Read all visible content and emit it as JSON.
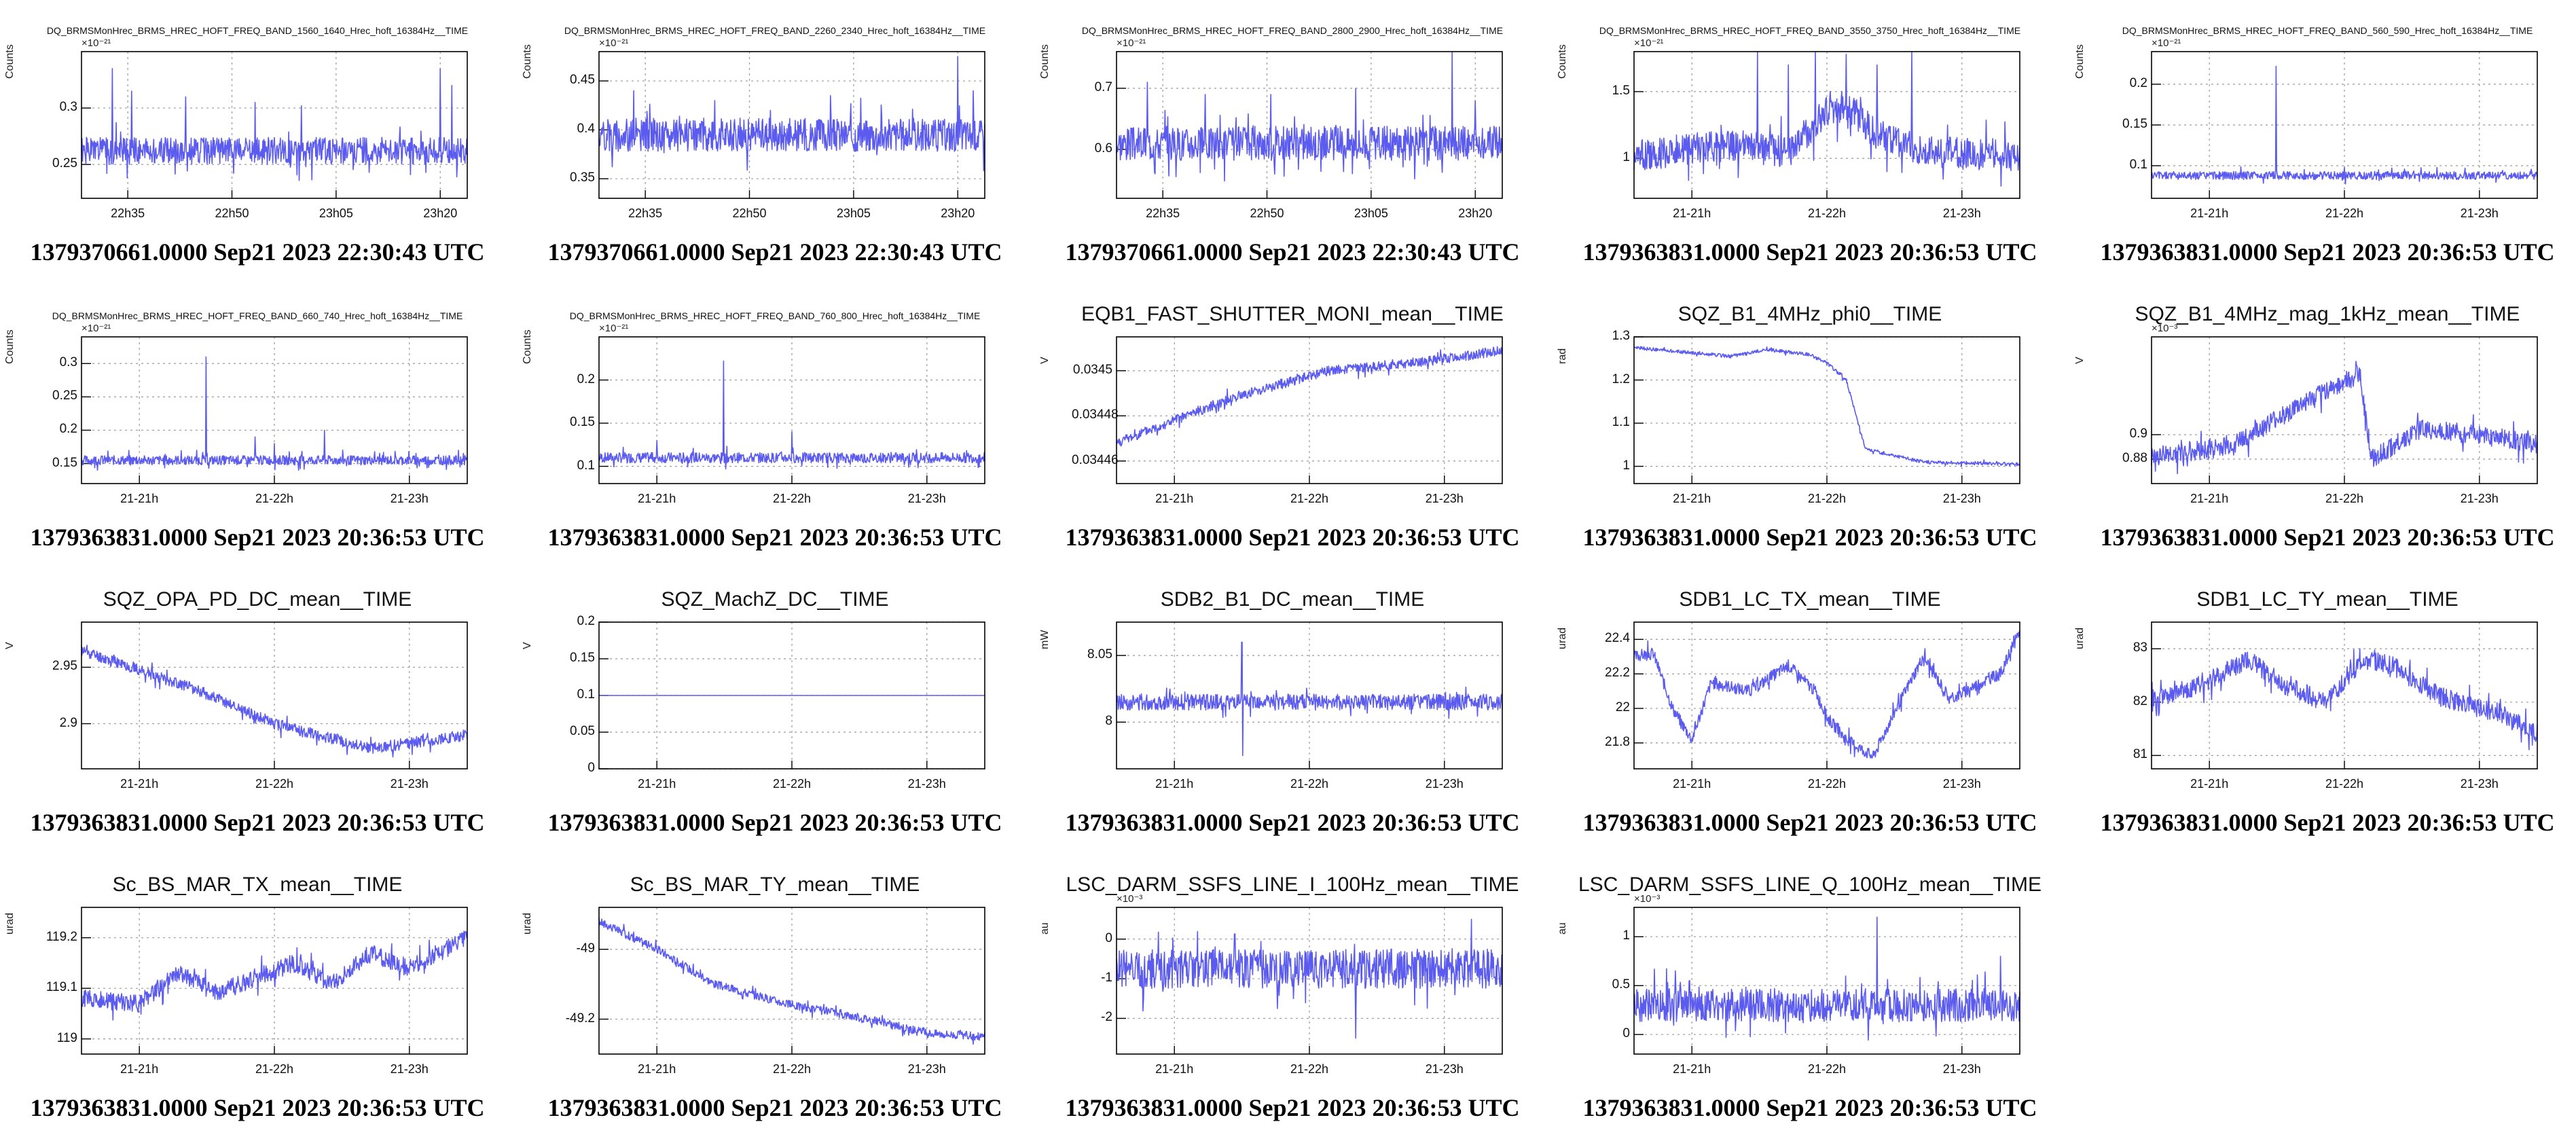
{
  "page": {
    "series_color": "#5b5bf0",
    "background": "#ffffff"
  },
  "chart_data": [
    {
      "type": "line",
      "title": "DQ_BRMSMonHrec_BRMS_HREC_HOFT_FREQ_BAND_1560_1640_Hrec_hoft_16384Hz__TIME",
      "title_size": "small",
      "ylabel": "Counts",
      "exponent": "×10⁻²¹",
      "ylim": [
        0.22,
        0.35
      ],
      "yticks": [
        0.25,
        0.3
      ],
      "ytick_labels": [
        "0.25",
        "0.3"
      ],
      "xticks": [
        "22h35",
        "22h50",
        "23h05",
        "23h20"
      ],
      "caption": "1379370661.0000 Sep21 2023 22:30:43 UTC",
      "profile": [
        [
          0,
          0.262
        ],
        [
          1,
          0.262
        ]
      ],
      "noise": 0.012,
      "spikes": [
        [
          0.08,
          0.335
        ],
        [
          0.13,
          0.315
        ],
        [
          0.27,
          0.31
        ],
        [
          0.45,
          0.305
        ],
        [
          0.57,
          0.302
        ],
        [
          0.93,
          0.335
        ],
        [
          0.96,
          0.32
        ]
      ]
    },
    {
      "type": "line",
      "title": "DQ_BRMSMonHrec_BRMS_HREC_HOFT_FREQ_BAND_2260_2340_Hrec_hoft_16384Hz__TIME",
      "title_size": "small",
      "ylabel": "Counts",
      "exponent": "×10⁻²¹",
      "ylim": [
        0.33,
        0.48
      ],
      "yticks": [
        0.35,
        0.4,
        0.45
      ],
      "ytick_labels": [
        "0.35",
        "0.4",
        "0.45"
      ],
      "xticks": [
        "22h35",
        "22h50",
        "23h05",
        "23h20"
      ],
      "caption": "1379370661.0000 Sep21 2023 22:30:43 UTC",
      "profile": [
        [
          0,
          0.395
        ],
        [
          1,
          0.395
        ]
      ],
      "noise": 0.017,
      "spikes": [
        [
          0.09,
          0.44
        ],
        [
          0.3,
          0.43
        ],
        [
          0.6,
          0.435
        ],
        [
          0.93,
          0.475
        ],
        [
          0.97,
          0.44
        ]
      ]
    },
    {
      "type": "line",
      "title": "DQ_BRMSMonHrec_BRMS_HREC_HOFT_FREQ_BAND_2800_2900_Hrec_hoft_16384Hz__TIME",
      "title_size": "small",
      "ylabel": "Counts",
      "exponent": "×10⁻²¹",
      "ylim": [
        0.52,
        0.76
      ],
      "yticks": [
        0.6,
        0.7
      ],
      "ytick_labels": [
        "0.6",
        "0.7"
      ],
      "xticks": [
        "22h35",
        "22h50",
        "23h05",
        "23h20"
      ],
      "caption": "1379370661.0000 Sep21 2023 22:30:43 UTC",
      "profile": [
        [
          0,
          0.61
        ],
        [
          1,
          0.61
        ]
      ],
      "noise": 0.028,
      "spikes": [
        [
          0.08,
          0.71
        ],
        [
          0.23,
          0.69
        ],
        [
          0.4,
          0.69
        ],
        [
          0.62,
          0.7
        ],
        [
          0.87,
          0.76
        ],
        [
          0.93,
          0.68
        ]
      ]
    },
    {
      "type": "line",
      "title": "DQ_BRMSMonHrec_BRMS_HREC_HOFT_FREQ_BAND_3550_3750_Hrec_hoft_16384Hz__TIME",
      "title_size": "small",
      "ylabel": "Counts",
      "exponent": "×10⁻²¹",
      "ylim": [
        0.7,
        1.8
      ],
      "yticks": [
        1,
        1.5
      ],
      "ytick_labels": [
        "1",
        "1.5"
      ],
      "xticks": [
        "21-21h",
        "21-22h",
        "21-23h"
      ],
      "caption": "1379363831.0000 Sep21 2023 20:36:53 UTC",
      "profile": [
        [
          0,
          1.02
        ],
        [
          0.25,
          1.1
        ],
        [
          0.4,
          1.05
        ],
        [
          0.5,
          1.35
        ],
        [
          0.55,
          1.4
        ],
        [
          0.62,
          1.2
        ],
        [
          0.75,
          1.05
        ],
        [
          1,
          1.02
        ]
      ],
      "noise": 0.12,
      "spikes": [
        [
          0.32,
          1.8
        ],
        [
          0.4,
          1.7
        ],
        [
          0.47,
          1.8
        ],
        [
          0.55,
          1.78
        ],
        [
          0.63,
          1.7
        ],
        [
          0.72,
          1.8
        ]
      ]
    },
    {
      "type": "line",
      "title": "DQ_BRMSMonHrec_BRMS_HREC_HOFT_FREQ_BAND_560_590_Hrec_hoft_16384Hz__TIME",
      "title_size": "small",
      "ylabel": "Counts",
      "exponent": "×10⁻²¹",
      "ylim": [
        0.06,
        0.24
      ],
      "yticks": [
        0.1,
        0.15,
        0.2
      ],
      "ytick_labels": [
        "0.1",
        "0.15",
        "0.2"
      ],
      "xticks": [
        "21-21h",
        "21-22h",
        "21-23h"
      ],
      "caption": "1379363831.0000 Sep21 2023 20:36:53 UTC",
      "profile": [
        [
          0,
          0.088
        ],
        [
          1,
          0.088
        ]
      ],
      "noise": 0.005,
      "spikes": [
        [
          0.323,
          0.222
        ],
        [
          0.5,
          0.098
        ]
      ]
    },
    {
      "type": "line",
      "title": "DQ_BRMSMonHrec_BRMS_HREC_HOFT_FREQ_BAND_660_740_Hrec_hoft_16384Hz__TIME",
      "title_size": "small",
      "ylabel": "Counts",
      "exponent": "×10⁻²¹",
      "ylim": [
        0.12,
        0.34
      ],
      "yticks": [
        0.15,
        0.2,
        0.25,
        0.3
      ],
      "ytick_labels": [
        "0.15",
        "0.2",
        "0.25",
        "0.3"
      ],
      "xticks": [
        "21-21h",
        "21-22h",
        "21-23h"
      ],
      "caption": "1379363831.0000 Sep21 2023 20:36:53 UTC",
      "profile": [
        [
          0,
          0.155
        ],
        [
          1,
          0.155
        ]
      ],
      "noise": 0.007,
      "spikes": [
        [
          0.323,
          0.31
        ],
        [
          0.45,
          0.19
        ],
        [
          0.63,
          0.2
        ],
        [
          0.5,
          0.18
        ]
      ]
    },
    {
      "type": "line",
      "title": "DQ_BRMSMonHrec_BRMS_HREC_HOFT_FREQ_BAND_760_800_Hrec_hoft_16384Hz__TIME",
      "title_size": "small",
      "ylabel": "Counts",
      "exponent": "×10⁻²¹",
      "ylim": [
        0.08,
        0.25
      ],
      "yticks": [
        0.1,
        0.15,
        0.2
      ],
      "ytick_labels": [
        "0.1",
        "0.15",
        "0.2"
      ],
      "xticks": [
        "21-21h",
        "21-22h",
        "21-23h"
      ],
      "caption": "1379363831.0000 Sep21 2023 20:36:53 UTC",
      "profile": [
        [
          0,
          0.11
        ],
        [
          1,
          0.11
        ]
      ],
      "noise": 0.006,
      "spikes": [
        [
          0.323,
          0.222
        ],
        [
          0.5,
          0.14
        ],
        [
          0.15,
          0.13
        ]
      ]
    },
    {
      "type": "line",
      "title": "EQB1_FAST_SHUTTER_MONI_mean__TIME",
      "title_size": "big",
      "ylabel": "V",
      "exponent": "",
      "ylim": [
        0.03445,
        0.034515
      ],
      "yticks": [
        0.03446,
        0.03448,
        0.0345
      ],
      "ytick_labels": [
        "0.03446",
        "0.03448",
        "0.0345"
      ],
      "xticks": [
        "21-21h",
        "21-22h",
        "21-23h"
      ],
      "caption": "1379363831.0000 Sep21 2023 20:36:53 UTC",
      "profile": [
        [
          0,
          0.034468
        ],
        [
          0.3,
          0.034488
        ],
        [
          0.55,
          0.0345
        ],
        [
          0.8,
          0.034504
        ],
        [
          1,
          0.034509
        ]
      ],
      "noise": 2.2e-06,
      "spikes": []
    },
    {
      "type": "line",
      "title": "SQZ_B1_4MHz_phi0__TIME",
      "title_size": "big",
      "ylabel": "rad",
      "exponent": "",
      "ylim": [
        0.96,
        1.3
      ],
      "yticks": [
        1,
        1.1,
        1.2,
        1.3
      ],
      "ytick_labels": [
        "1",
        "1.1",
        "1.2",
        "1.3"
      ],
      "xticks": [
        "21-21h",
        "21-22h",
        "21-23h"
      ],
      "caption": "1379363831.0000 Sep21 2023 20:36:53 UTC",
      "profile": [
        [
          0,
          1.275
        ],
        [
          0.25,
          1.255
        ],
        [
          0.35,
          1.27
        ],
        [
          0.45,
          1.26
        ],
        [
          0.5,
          1.24
        ],
        [
          0.55,
          1.2
        ],
        [
          0.6,
          1.04
        ],
        [
          0.75,
          1.01
        ],
        [
          1,
          1.005
        ]
      ],
      "noise": 0.004,
      "spikes": []
    },
    {
      "type": "line",
      "title": "SQZ_B1_4MHz_mag_1kHz_mean__TIME",
      "title_size": "big",
      "ylabel": "V",
      "exponent": "×10⁻³",
      "ylim": [
        0.86,
        0.98
      ],
      "yticks": [
        0.88,
        0.9
      ],
      "ytick_labels": [
        "0.88",
        "0.9"
      ],
      "xticks": [
        "21-21h",
        "21-22h",
        "21-23h"
      ],
      "caption": "1379363831.0000 Sep21 2023 20:36:53 UTC",
      "profile": [
        [
          0,
          0.882
        ],
        [
          0.2,
          0.89
        ],
        [
          0.45,
          0.935
        ],
        [
          0.54,
          0.95
        ],
        [
          0.57,
          0.88
        ],
        [
          0.7,
          0.905
        ],
        [
          0.85,
          0.9
        ],
        [
          1,
          0.892
        ]
      ],
      "noise": 0.008,
      "spikes": [
        [
          0.53,
          0.96
        ]
      ]
    },
    {
      "type": "line",
      "title": "SQZ_OPA_PD_DC_mean__TIME",
      "title_size": "big",
      "ylabel": "V",
      "exponent": "",
      "ylim": [
        2.86,
        2.99
      ],
      "yticks": [
        2.9,
        2.95
      ],
      "ytick_labels": [
        "2.9",
        "2.95"
      ],
      "xticks": [
        "21-21h",
        "21-22h",
        "21-23h"
      ],
      "caption": "1379363831.0000 Sep21 2023 20:36:53 UTC",
      "profile": [
        [
          0,
          2.965
        ],
        [
          0.3,
          2.93
        ],
        [
          0.5,
          2.9
        ],
        [
          0.75,
          2.878
        ],
        [
          1,
          2.89
        ]
      ],
      "noise": 0.005,
      "spikes": []
    },
    {
      "type": "line",
      "title": "SQZ_MachZ_DC__TIME",
      "title_size": "big",
      "ylabel": "V",
      "exponent": "",
      "ylim": [
        0,
        0.2
      ],
      "yticks": [
        0,
        0.05,
        0.1,
        0.15,
        0.2
      ],
      "ytick_labels": [
        "0",
        "0.05",
        "0.1",
        "0.15",
        "0.2"
      ],
      "xticks": [
        "21-21h",
        "21-22h",
        "21-23h"
      ],
      "caption": "1379363831.0000 Sep21 2023 20:36:53 UTC",
      "profile": [
        [
          0,
          0.1
        ],
        [
          1,
          0.1
        ]
      ],
      "noise": 0,
      "spikes": []
    },
    {
      "type": "line",
      "title": "SDB2_B1_DC_mean__TIME",
      "title_size": "big",
      "ylabel": "mW",
      "exponent": "",
      "ylim": [
        7.965,
        8.075
      ],
      "yticks": [
        8,
        8.05
      ],
      "ytick_labels": [
        "8",
        "8.05"
      ],
      "xticks": [
        "21-21h",
        "21-22h",
        "21-23h"
      ],
      "caption": "1379363831.0000 Sep21 2023 20:36:53 UTC",
      "profile": [
        [
          0,
          8.015
        ],
        [
          1,
          8.015
        ]
      ],
      "noise": 0.006,
      "spikes": [
        [
          0.325,
          8.06
        ],
        [
          0.327,
          7.975
        ]
      ]
    },
    {
      "type": "line",
      "title": "SDB1_LC_TX_mean__TIME",
      "title_size": "big",
      "ylabel": "urad",
      "exponent": "",
      "ylim": [
        21.65,
        22.5
      ],
      "yticks": [
        21.8,
        22,
        22.2,
        22.4
      ],
      "ytick_labels": [
        "21.8",
        "22",
        "22.2",
        "22.4"
      ],
      "xticks": [
        "21-21h",
        "21-22h",
        "21-23h"
      ],
      "caption": "1379363831.0000 Sep21 2023 20:36:53 UTC",
      "profile": [
        [
          0,
          22.3
        ],
        [
          0.05,
          22.32
        ],
        [
          0.1,
          22.0
        ],
        [
          0.15,
          21.82
        ],
        [
          0.2,
          22.15
        ],
        [
          0.3,
          22.1
        ],
        [
          0.4,
          22.25
        ],
        [
          0.47,
          22.1
        ],
        [
          0.5,
          21.95
        ],
        [
          0.55,
          21.82
        ],
        [
          0.62,
          21.72
        ],
        [
          0.68,
          22.0
        ],
        [
          0.75,
          22.3
        ],
        [
          0.82,
          22.05
        ],
        [
          0.9,
          22.15
        ],
        [
          0.95,
          22.2
        ],
        [
          1,
          22.45
        ]
      ],
      "noise": 0.035,
      "spikes": []
    },
    {
      "type": "line",
      "title": "SDB1_LC_TY_mean__TIME",
      "title_size": "big",
      "ylabel": "urad",
      "exponent": "",
      "ylim": [
        80.75,
        83.5
      ],
      "yticks": [
        81,
        82,
        83
      ],
      "ytick_labels": [
        "81",
        "82",
        "83"
      ],
      "xticks": [
        "21-21h",
        "21-22h",
        "21-23h"
      ],
      "caption": "1379363831.0000 Sep21 2023 20:36:53 UTC",
      "profile": [
        [
          0,
          82.0
        ],
        [
          0.15,
          82.4
        ],
        [
          0.25,
          82.8
        ],
        [
          0.35,
          82.3
        ],
        [
          0.45,
          82.0
        ],
        [
          0.55,
          82.8
        ],
        [
          0.62,
          82.7
        ],
        [
          0.75,
          82.1
        ],
        [
          0.9,
          81.8
        ],
        [
          1,
          81.4
        ]
      ],
      "noise": 0.18,
      "spikes": []
    },
    {
      "type": "line",
      "title": "Sc_BS_MAR_TX_mean__TIME",
      "title_size": "big",
      "ylabel": "urad",
      "exponent": "",
      "ylim": [
        118.97,
        119.26
      ],
      "yticks": [
        119,
        119.1,
        119.2
      ],
      "ytick_labels": [
        "119",
        "119.1",
        "119.2"
      ],
      "xticks": [
        "21-21h",
        "21-22h",
        "21-23h"
      ],
      "caption": "1379363831.0000 Sep21 2023 20:36:53 UTC",
      "profile": [
        [
          0,
          119.08
        ],
        [
          0.15,
          119.07
        ],
        [
          0.25,
          119.13
        ],
        [
          0.35,
          119.09
        ],
        [
          0.45,
          119.12
        ],
        [
          0.55,
          119.15
        ],
        [
          0.65,
          119.11
        ],
        [
          0.75,
          119.17
        ],
        [
          0.85,
          119.14
        ],
        [
          1,
          119.2
        ]
      ],
      "noise": 0.018,
      "spikes": []
    },
    {
      "type": "line",
      "title": "Sc_BS_MAR_TY_mean__TIME",
      "title_size": "big",
      "ylabel": "urad",
      "exponent": "",
      "ylim": [
        -49.3,
        -48.88
      ],
      "yticks": [
        -49.2,
        -49
      ],
      "ytick_labels": [
        "-49.2",
        "-49"
      ],
      "xticks": [
        "21-21h",
        "21-22h",
        "21-23h"
      ],
      "caption": "1379363831.0000 Sep21 2023 20:36:53 UTC",
      "profile": [
        [
          0,
          -48.92
        ],
        [
          0.15,
          -49.0
        ],
        [
          0.3,
          -49.1
        ],
        [
          0.5,
          -49.16
        ],
        [
          0.7,
          -49.2
        ],
        [
          0.85,
          -49.24
        ],
        [
          1,
          -49.25
        ]
      ],
      "noise": 0.012,
      "spikes": []
    },
    {
      "type": "line",
      "title": "LSC_DARM_SSFS_LINE_I_100Hz_mean__TIME",
      "title_size": "big",
      "ylabel": "au",
      "exponent": "×10⁻³",
      "ylim": [
        -2.9,
        0.8
      ],
      "yticks": [
        -2,
        -1,
        0
      ],
      "ytick_labels": [
        "-2",
        "-1",
        "0"
      ],
      "xticks": [
        "21-21h",
        "21-22h",
        "21-23h"
      ],
      "caption": "1379363831.0000 Sep21 2023 20:36:53 UTC",
      "profile": [
        [
          0,
          -0.75
        ],
        [
          1,
          -0.75
        ]
      ],
      "noise": 0.5,
      "spikes": [
        [
          0.62,
          -2.5
        ],
        [
          0.92,
          0.5
        ]
      ]
    },
    {
      "type": "line",
      "title": "LSC_DARM_SSFS_LINE_Q_100Hz_mean__TIME",
      "title_size": "big",
      "ylabel": "au",
      "exponent": "×10⁻³",
      "ylim": [
        -0.2,
        1.3
      ],
      "yticks": [
        0,
        0.5,
        1
      ],
      "ytick_labels": [
        "0",
        "0.5",
        "1"
      ],
      "xticks": [
        "21-21h",
        "21-22h",
        "21-23h"
      ],
      "caption": "1379363831.0000 Sep21 2023 20:36:53 UTC",
      "profile": [
        [
          0,
          0.3
        ],
        [
          1,
          0.3
        ]
      ],
      "noise": 0.17,
      "spikes": [
        [
          0.63,
          1.2
        ],
        [
          0.95,
          0.8
        ]
      ]
    }
  ]
}
